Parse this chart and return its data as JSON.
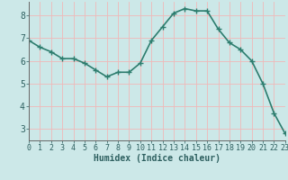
{
  "x": [
    0,
    1,
    2,
    3,
    4,
    5,
    6,
    7,
    8,
    9,
    10,
    11,
    12,
    13,
    14,
    15,
    16,
    17,
    18,
    19,
    20,
    21,
    22,
    23
  ],
  "y": [
    6.9,
    6.6,
    6.4,
    6.1,
    6.1,
    5.9,
    5.6,
    5.3,
    5.5,
    5.5,
    5.9,
    6.9,
    7.5,
    8.1,
    8.3,
    8.2,
    8.2,
    7.4,
    6.8,
    6.5,
    6.0,
    5.0,
    3.7,
    2.8
  ],
  "xlabel": "Humidex (Indice chaleur)",
  "line_color": "#2d7d6e",
  "marker": "+",
  "marker_size": 4,
  "bg_color": "#cce8e8",
  "grid_color": "#f0b8b8",
  "tick_color": "#2d5f5f",
  "axis_color": "#666666",
  "xlim": [
    0,
    23
  ],
  "ylim": [
    2.5,
    8.6
  ],
  "yticks": [
    3,
    4,
    5,
    6,
    7,
    8
  ],
  "xticks": [
    0,
    1,
    2,
    3,
    4,
    5,
    6,
    7,
    8,
    9,
    10,
    11,
    12,
    13,
    14,
    15,
    16,
    17,
    18,
    19,
    20,
    21,
    22,
    23
  ],
  "linewidth": 1.2,
  "xlabel_fontsize": 7,
  "tick_fontsize": 6
}
